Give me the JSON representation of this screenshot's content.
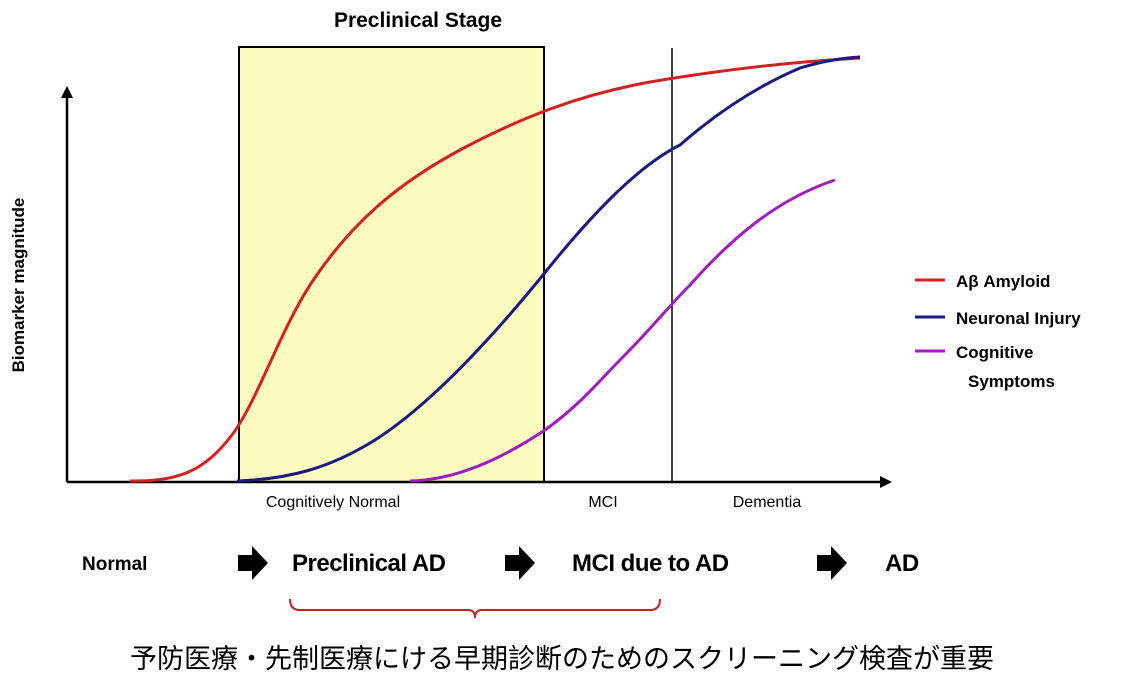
{
  "diagram": {
    "preclinical_stage_title": "Preclinical Stage",
    "y_axis_label": "Biomarker magnitude",
    "phases": [
      "Cognitively Normal",
      "MCI",
      "Dementia"
    ],
    "legend": [
      {
        "label": "Aβ Amyloid",
        "color": "#d42020"
      },
      {
        "label": "Neuronal Injury",
        "color": "#1a1a80"
      },
      {
        "label": "Cognitive",
        "label_line2": "Symptoms",
        "color": "#a01cc0"
      }
    ],
    "highlight_color": "#fdfbbf"
  },
  "progression": {
    "steps": [
      "Normal",
      "Preclinical AD",
      "MCI due to AD",
      "AD"
    ],
    "arrow_icon": "right-arrow-icon",
    "bracket_color": "#c8201e"
  },
  "caption": "予防医療・先制医療にける早期診断のためのスクリーニング検査が重要"
}
